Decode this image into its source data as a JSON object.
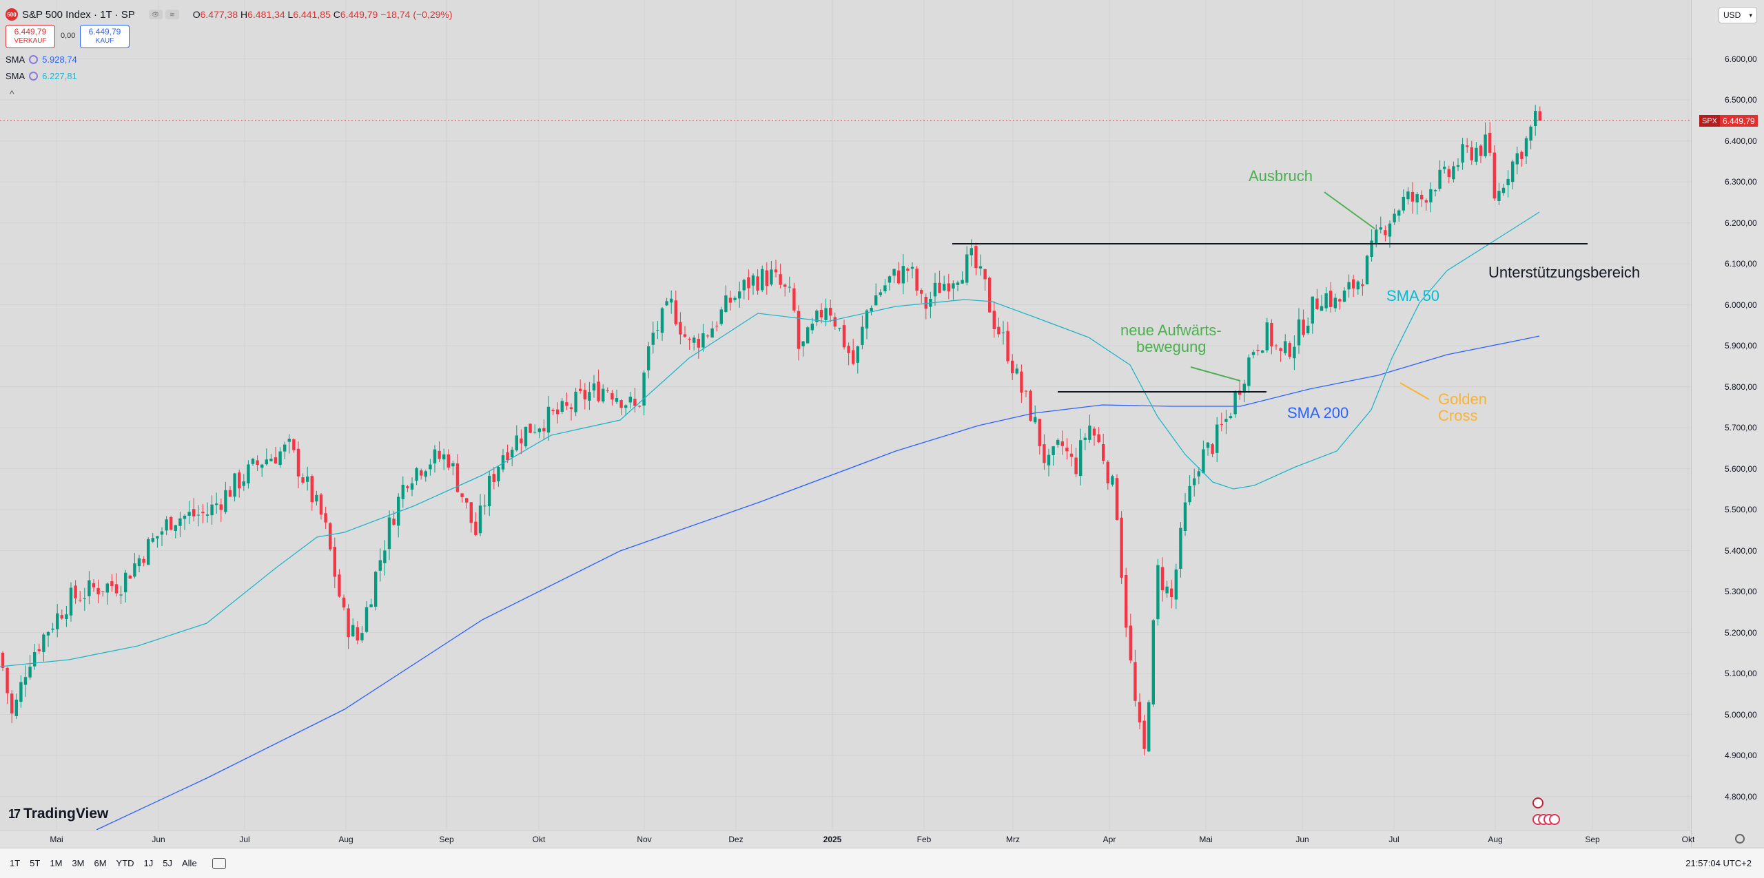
{
  "header": {
    "symbol_badge": "500",
    "title": "S&P 500 Index · 1T · SP",
    "ohlc": {
      "o_label": "O",
      "o": "6.477,38",
      "h_label": "H",
      "h": "6.481,34",
      "l_label": "L",
      "l": "6.441,85",
      "c_label": "C",
      "c": "6.449,79",
      "change": "−18,74 (−0,29%)"
    },
    "sell": {
      "price": "6.449,79",
      "label": "VERKAUF"
    },
    "spread": "0,00",
    "buy": {
      "price": "6.449,79",
      "label": "KAUF"
    },
    "indicators": [
      {
        "name": "SMA",
        "value": "5.928,74",
        "color": "#2962ff"
      },
      {
        "name": "SMA",
        "value": "6.227,81",
        "color": "#1fb5c9"
      }
    ],
    "collapse_glyph": "^"
  },
  "currency": "USD",
  "price_axis": {
    "ticks": [
      "6.600,00",
      "6.500,00",
      "6.400,00",
      "6.300,00",
      "6.200,00",
      "6.100,00",
      "6.000,00",
      "5.900,00",
      "5.800,00",
      "5.700,00",
      "5.600,00",
      "5.500,00",
      "5.400,00",
      "5.300,00",
      "5.200,00",
      "5.100,00",
      "5.000,00",
      "4.900,00",
      "4.800,00"
    ],
    "last_price_symbol": "SPX",
    "last_price": "6.449,79"
  },
  "time_axis": {
    "ticks": [
      "Mai",
      "Jun",
      "Jul",
      "Aug",
      "Sep",
      "Okt",
      "Nov",
      "Dez",
      "2025",
      "Feb",
      "Mrz",
      "Apr",
      "Mai",
      "Jun",
      "Jul",
      "Aug",
      "Sep",
      "Okt"
    ]
  },
  "annotations": {
    "breakout": "Ausbruch",
    "support": "Unterstützungsbereich",
    "sma50": "SMA 50",
    "sma200": "SMA 200",
    "new_up_1": "neue Aufwärts-",
    "new_up_2": "bewegung",
    "golden_1": "Golden",
    "golden_2": "Cross"
  },
  "colors": {
    "up": "#089981",
    "down": "#f23645",
    "sma50": "#1fb5c9",
    "sma200": "#2962ff",
    "annotation_green": "#4caf50",
    "annotation_cyan": "#00bcd4",
    "annotation_blue": "#2962ff",
    "annotation_orange": "#f9b233"
  },
  "chart_data": {
    "type": "candlestick",
    "series": [
      {
        "name": "SMA",
        "legend_value": "5.928,74"
      },
      {
        "name": "SMA",
        "legend_value": "6.227,81"
      }
    ],
    "y_ticks": [
      6600,
      6500,
      6400,
      6300,
      6200,
      6100,
      6000,
      5900,
      5800,
      5700,
      5600,
      5500,
      5400,
      5300,
      5200,
      5100,
      5000,
      4900,
      4800
    ],
    "last_price": 6449.79,
    "key_levels": {
      "resistance_turned_support": 6150,
      "breakout_neckline": 5790
    },
    "ohlc_points": [
      {
        "period": "2024-04",
        "low": 4950,
        "high": 5200
      },
      {
        "period": "2024-05",
        "low": 5050,
        "high": 5330
      },
      {
        "period": "2024-06",
        "low": 5230,
        "high": 5500
      },
      {
        "period": "2024-07",
        "low": 5400,
        "high": 5670
      },
      {
        "period": "2024-08",
        "low": 5120,
        "high": 5650
      },
      {
        "period": "2024-09",
        "low": 5400,
        "high": 5760
      },
      {
        "period": "2024-10",
        "low": 5690,
        "high": 5880
      },
      {
        "period": "2024-11",
        "low": 5700,
        "high": 6100
      },
      {
        "period": "2024-12",
        "low": 5860,
        "high": 6100
      },
      {
        "period": "2025-01",
        "low": 5780,
        "high": 6130
      },
      {
        "period": "2025-02",
        "low": 5840,
        "high": 6150
      },
      {
        "period": "2025-03",
        "low": 5500,
        "high": 5990
      },
      {
        "period": "2025-04",
        "low": 4830,
        "high": 5700
      },
      {
        "period": "2025-05",
        "low": 5560,
        "high": 5960
      },
      {
        "period": "2025-06",
        "low": 5850,
        "high": 6220
      },
      {
        "period": "2025-07",
        "low": 6180,
        "high": 6430
      },
      {
        "period": "2025-08",
        "low": 6210,
        "high": 6481
      }
    ]
  },
  "bottom_bar": {
    "timeframes": [
      "1T",
      "5T",
      "1M",
      "3M",
      "6M",
      "YTD",
      "1J",
      "5J",
      "Alle"
    ],
    "clock": "21:57:04 UTC+2"
  },
  "branding": "TradingView"
}
